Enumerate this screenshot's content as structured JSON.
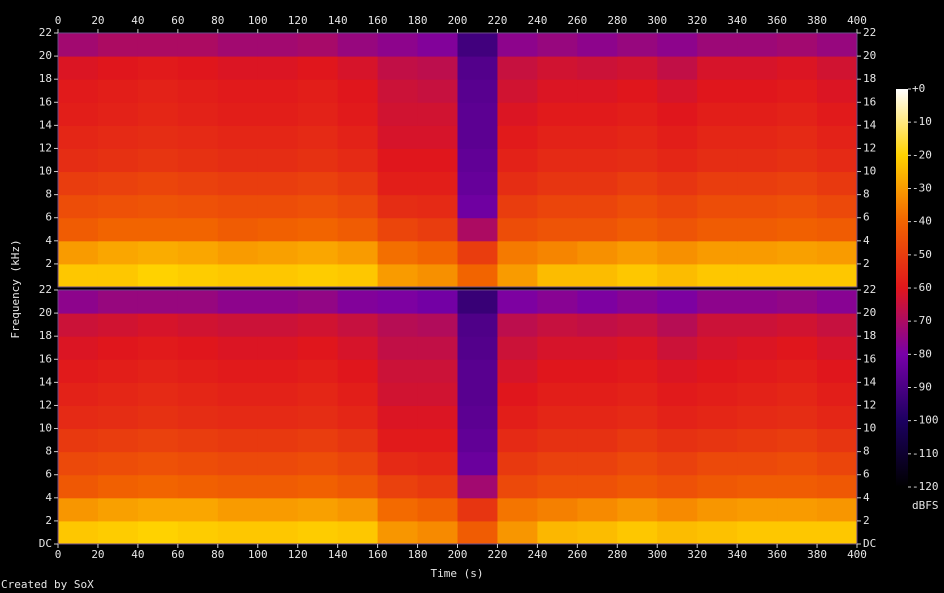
{
  "chart_data": {
    "type": "spectrogram",
    "xlabel": "Time (s)",
    "ylabel": "Frequency (kHz)",
    "credit": "Created by SoX",
    "xlim": [
      0,
      400
    ],
    "xticks": [
      0,
      20,
      40,
      60,
      80,
      100,
      120,
      140,
      160,
      180,
      200,
      220,
      240,
      260,
      280,
      300,
      320,
      340,
      360,
      380,
      400
    ],
    "ylim": [
      0,
      22
    ],
    "freq_bins": [
      0,
      2,
      4,
      6,
      8,
      10,
      12,
      14,
      16,
      18,
      20,
      22
    ],
    "zlim": [
      -120,
      0
    ],
    "zticks": [
      {
        "value": 0,
        "label": "+0"
      },
      -10,
      -20,
      -30,
      -40,
      -50,
      -60,
      -70,
      -80,
      -90,
      -100,
      -110,
      -120
    ],
    "zlabel": "dBFS",
    "colors": [
      "#000000",
      "#1c0060",
      "#7800a8",
      "#e0161c",
      "#f26400",
      "#ffd200",
      "#ffffff"
    ],
    "channels": [
      {
        "yticks": [
          2,
          4,
          6,
          8,
          10,
          12,
          14,
          16,
          18,
          20,
          22
        ],
        "z": [
          [
            -22,
            -22,
            -20,
            -21,
            -22,
            -22,
            -21,
            -22,
            -30,
            -32,
            -40,
            -30,
            -24,
            -24,
            -22,
            -24,
            -22,
            -22,
            -22,
            -22
          ],
          [
            -30,
            -28,
            -27,
            -28,
            -30,
            -29,
            -28,
            -30,
            -38,
            -40,
            -50,
            -36,
            -34,
            -32,
            -30,
            -32,
            -30,
            -30,
            -29,
            -30
          ],
          [
            -42,
            -40,
            -40,
            -40,
            -42,
            -41,
            -40,
            -42,
            -48,
            -50,
            -70,
            -46,
            -44,
            -44,
            -42,
            -44,
            -42,
            -42,
            -41,
            -42
          ],
          [
            -46,
            -45,
            -44,
            -45,
            -46,
            -46,
            -45,
            -47,
            -54,
            -55,
            -82,
            -50,
            -48,
            -48,
            -46,
            -48,
            -46,
            -46,
            -45,
            -47
          ],
          [
            -50,
            -49,
            -48,
            -49,
            -50,
            -50,
            -49,
            -51,
            -58,
            -58,
            -84,
            -54,
            -52,
            -52,
            -50,
            -52,
            -50,
            -50,
            -49,
            -51
          ],
          [
            -54,
            -53,
            -52,
            -53,
            -54,
            -54,
            -53,
            -55,
            -60,
            -60,
            -85,
            -57,
            -55,
            -55,
            -54,
            -56,
            -54,
            -54,
            -53,
            -55
          ],
          [
            -56,
            -55,
            -54,
            -55,
            -56,
            -56,
            -55,
            -57,
            -62,
            -62,
            -86,
            -59,
            -57,
            -57,
            -56,
            -58,
            -56,
            -56,
            -55,
            -57
          ],
          [
            -58,
            -57,
            -56,
            -57,
            -58,
            -58,
            -57,
            -59,
            -63,
            -63,
            -86,
            -61,
            -59,
            -59,
            -58,
            -60,
            -58,
            -58,
            -57,
            -59
          ],
          [
            -59,
            -58,
            -57,
            -58,
            -59,
            -59,
            -58,
            -60,
            -64,
            -65,
            -87,
            -63,
            -61,
            -61,
            -60,
            -62,
            -60,
            -60,
            -59,
            -61
          ],
          [
            -61,
            -60,
            -59,
            -60,
            -61,
            -61,
            -60,
            -62,
            -66,
            -67,
            -88,
            -65,
            -63,
            -64,
            -63,
            -66,
            -62,
            -62,
            -61,
            -63
          ],
          [
            -72,
            -70,
            -70,
            -70,
            -72,
            -72,
            -71,
            -74,
            -76,
            -78,
            -92,
            -76,
            -74,
            -76,
            -74,
            -76,
            -73,
            -73,
            -72,
            -74
          ]
        ]
      },
      {
        "yticks": [
          {
            "value": 0,
            "label": "DC"
          },
          2,
          4,
          6,
          8,
          10,
          12,
          14,
          16,
          18,
          20,
          22
        ],
        "z": [
          [
            -22,
            -21,
            -20,
            -21,
            -22,
            -22,
            -21,
            -22,
            -31,
            -33,
            -42,
            -31,
            -25,
            -24,
            -22,
            -24,
            -23,
            -22,
            -22,
            -22
          ],
          [
            -31,
            -29,
            -28,
            -28,
            -30,
            -30,
            -29,
            -31,
            -39,
            -41,
            -52,
            -37,
            -35,
            -33,
            -31,
            -33,
            -31,
            -30,
            -30,
            -31
          ],
          [
            -43,
            -41,
            -40,
            -41,
            -42,
            -42,
            -41,
            -43,
            -49,
            -51,
            -72,
            -47,
            -45,
            -45,
            -43,
            -45,
            -43,
            -42,
            -42,
            -43
          ],
          [
            -47,
            -46,
            -45,
            -46,
            -47,
            -47,
            -46,
            -48,
            -55,
            -56,
            -83,
            -51,
            -49,
            -49,
            -47,
            -49,
            -47,
            -47,
            -46,
            -48
          ],
          [
            -51,
            -50,
            -49,
            -50,
            -51,
            -51,
            -50,
            -52,
            -59,
            -59,
            -85,
            -55,
            -53,
            -53,
            -51,
            -53,
            -52,
            -51,
            -50,
            -52
          ],
          [
            -55,
            -54,
            -53,
            -54,
            -55,
            -55,
            -54,
            -56,
            -61,
            -61,
            -86,
            -58,
            -56,
            -56,
            -55,
            -57,
            -56,
            -55,
            -54,
            -56
          ],
          [
            -57,
            -56,
            -55,
            -56,
            -57,
            -57,
            -56,
            -58,
            -63,
            -63,
            -87,
            -60,
            -58,
            -58,
            -57,
            -59,
            -58,
            -57,
            -56,
            -58
          ],
          [
            -59,
            -58,
            -57,
            -58,
            -59,
            -59,
            -58,
            -60,
            -64,
            -64,
            -87,
            -62,
            -60,
            -60,
            -59,
            -61,
            -60,
            -59,
            -58,
            -60
          ],
          [
            -61,
            -60,
            -59,
            -60,
            -61,
            -61,
            -60,
            -62,
            -66,
            -66,
            -88,
            -64,
            -62,
            -62,
            -61,
            -64,
            -62,
            -61,
            -60,
            -62
          ],
          [
            -64,
            -63,
            -62,
            -63,
            -64,
            -64,
            -63,
            -65,
            -68,
            -69,
            -89,
            -67,
            -65,
            -66,
            -65,
            -68,
            -64,
            -64,
            -63,
            -65
          ],
          [
            -76,
            -74,
            -74,
            -74,
            -76,
            -76,
            -75,
            -78,
            -79,
            -81,
            -94,
            -79,
            -77,
            -79,
            -77,
            -79,
            -76,
            -76,
            -75,
            -77
          ]
        ]
      }
    ]
  }
}
